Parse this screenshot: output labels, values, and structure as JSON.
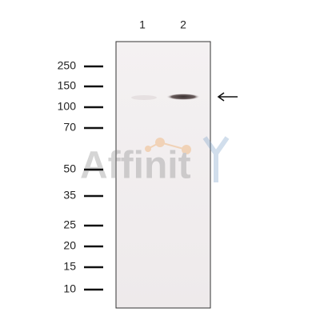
{
  "lanes": [
    "1",
    "2"
  ],
  "markers": [
    "250",
    "150",
    "100",
    "70",
    "50",
    "35",
    "25",
    "20",
    "15",
    "10"
  ],
  "watermark": "Affinit"
}
